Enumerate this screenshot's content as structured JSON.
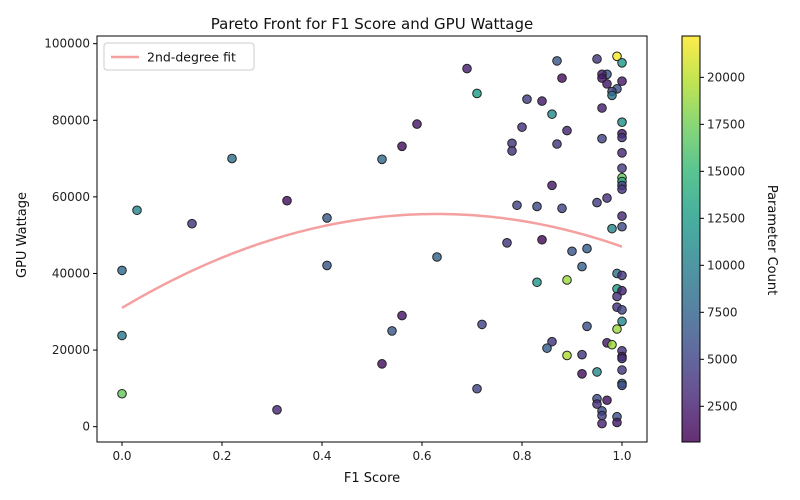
{
  "chart_data": {
    "type": "scatter",
    "title": "Pareto Front for F1 Score and GPU Wattage",
    "xlabel": "F1 Score",
    "ylabel": "GPU Wattage",
    "xlim": [
      -0.05,
      1.05
    ],
    "ylim": [
      -4000,
      102000
    ],
    "xticks": [
      0.0,
      0.2,
      0.4,
      0.6,
      0.8,
      1.0
    ],
    "xtick_labels": [
      "0.0",
      "0.2",
      "0.4",
      "0.6",
      "0.8",
      "1.0"
    ],
    "yticks": [
      0,
      20000,
      40000,
      60000,
      80000,
      100000
    ],
    "ytick_labels": [
      "0",
      "20000",
      "40000",
      "60000",
      "80000",
      "100000"
    ],
    "grid": false,
    "legend_position": "top-left",
    "legend": [
      "2nd-degree fit"
    ],
    "colorbar": {
      "label": "Parameter Count",
      "range": [
        600,
        22200
      ],
      "ticks": [
        2500,
        5000,
        7500,
        10000,
        12500,
        15000,
        17500,
        20000
      ],
      "tick_labels": [
        "2500",
        "5000",
        "7500",
        "10000",
        "12500",
        "15000",
        "17500",
        "20000"
      ],
      "colormap": "viridis"
    },
    "fit": {
      "name": "2nd-degree fit",
      "color": "#f4a0a0",
      "coefficients": [
        31000,
        78000,
        -62000
      ],
      "x_range": [
        0,
        1
      ]
    },
    "series": [
      {
        "points": [
          [
            0.99,
            96700,
            22000
          ],
          [
            0.95,
            96000,
            4000
          ],
          [
            0.87,
            95500,
            6500
          ],
          [
            1.0,
            95000,
            12000
          ],
          [
            0.69,
            93500,
            2500
          ],
          [
            0.97,
            92000,
            6000
          ],
          [
            0.96,
            92000,
            2500
          ],
          [
            0.96,
            91000,
            2000
          ],
          [
            0.88,
            91000,
            1500
          ],
          [
            1.0,
            90200,
            2200
          ],
          [
            0.97,
            89500,
            2000
          ],
          [
            0.99,
            88200,
            6000
          ],
          [
            0.98,
            87500,
            5000
          ],
          [
            0.71,
            87000,
            12500
          ],
          [
            0.98,
            86500,
            9000
          ],
          [
            0.81,
            85500,
            4500
          ],
          [
            0.84,
            85000,
            2000
          ],
          [
            0.96,
            83200,
            2500
          ],
          [
            0.86,
            81600,
            11000
          ],
          [
            1.0,
            79500,
            11500
          ],
          [
            0.59,
            79000,
            2000
          ],
          [
            0.8,
            78200,
            3500
          ],
          [
            0.89,
            77300,
            2800
          ],
          [
            1.0,
            76500,
            2000
          ],
          [
            1.0,
            75500,
            3500
          ],
          [
            0.96,
            75200,
            5000
          ],
          [
            0.78,
            74000,
            4000
          ],
          [
            0.87,
            73800,
            4000
          ],
          [
            0.56,
            73200,
            1500
          ],
          [
            0.78,
            72000,
            3500
          ],
          [
            1.0,
            71500,
            3000
          ],
          [
            0.22,
            70000,
            8500
          ],
          [
            0.52,
            69800,
            8000
          ],
          [
            1.0,
            67500,
            4500
          ],
          [
            1.0,
            65000,
            17000
          ],
          [
            1.0,
            64000,
            14000
          ],
          [
            1.0,
            63000,
            5000
          ],
          [
            0.86,
            63000,
            2000
          ],
          [
            1.0,
            62000,
            4000
          ],
          [
            0.97,
            59700,
            3500
          ],
          [
            0.33,
            59000,
            1500
          ],
          [
            0.95,
            58500,
            4500
          ],
          [
            0.79,
            57800,
            5000
          ],
          [
            0.83,
            57500,
            5500
          ],
          [
            0.88,
            57000,
            5000
          ],
          [
            0.03,
            56500,
            10500
          ],
          [
            1.0,
            55000,
            3000
          ],
          [
            0.41,
            54500,
            6500
          ],
          [
            0.14,
            53000,
            4000
          ],
          [
            0.98,
            51700,
            10500
          ],
          [
            1.0,
            52200,
            5500
          ],
          [
            0.84,
            48800,
            1200
          ],
          [
            0.77,
            48000,
            4000
          ],
          [
            0.93,
            46500,
            7000
          ],
          [
            0.9,
            45800,
            6500
          ],
          [
            0.63,
            44300,
            7500
          ],
          [
            0.41,
            42100,
            6500
          ],
          [
            0.92,
            41800,
            7500
          ],
          [
            0.0,
            40800,
            8000
          ],
          [
            0.99,
            40000,
            8500
          ],
          [
            1.0,
            39500,
            4000
          ],
          [
            0.89,
            38300,
            19000
          ],
          [
            0.83,
            37700,
            12000
          ],
          [
            0.99,
            36000,
            12500
          ],
          [
            1.0,
            35500,
            2500
          ],
          [
            0.99,
            34000,
            3500
          ],
          [
            0.99,
            31200,
            4000
          ],
          [
            1.0,
            30500,
            5000
          ],
          [
            0.56,
            29000,
            1800
          ],
          [
            1.0,
            27500,
            11000
          ],
          [
            0.72,
            26700,
            5000
          ],
          [
            0.93,
            26200,
            6000
          ],
          [
            0.99,
            25500,
            19000
          ],
          [
            0.54,
            25000,
            6500
          ],
          [
            0.0,
            23800,
            9500
          ],
          [
            0.86,
            22200,
            4000
          ],
          [
            0.97,
            21900,
            2200
          ],
          [
            0.98,
            21400,
            19000
          ],
          [
            0.85,
            20500,
            7000
          ],
          [
            1.0,
            19800,
            3500
          ],
          [
            0.89,
            18600,
            19500
          ],
          [
            0.92,
            18800,
            4000
          ],
          [
            1.0,
            18300,
            2000
          ],
          [
            1.0,
            17800,
            3500
          ],
          [
            0.52,
            16400,
            1500
          ],
          [
            1.0,
            14800,
            4000
          ],
          [
            0.95,
            14300,
            11000
          ],
          [
            0.92,
            13800,
            1500
          ],
          [
            1.0,
            11300,
            8500
          ],
          [
            1.0,
            10800,
            5500
          ],
          [
            0.71,
            9900,
            5000
          ],
          [
            0.0,
            8600,
            17000
          ],
          [
            0.95,
            7300,
            5500
          ],
          [
            0.97,
            6900,
            1500
          ],
          [
            0.95,
            5900,
            3500
          ],
          [
            0.31,
            4400,
            3000
          ],
          [
            0.96,
            4100,
            5500
          ],
          [
            0.96,
            2900,
            4500
          ],
          [
            0.99,
            2600,
            6000
          ],
          [
            0.96,
            800,
            2800
          ],
          [
            0.99,
            1100,
            2000
          ]
        ]
      }
    ]
  }
}
